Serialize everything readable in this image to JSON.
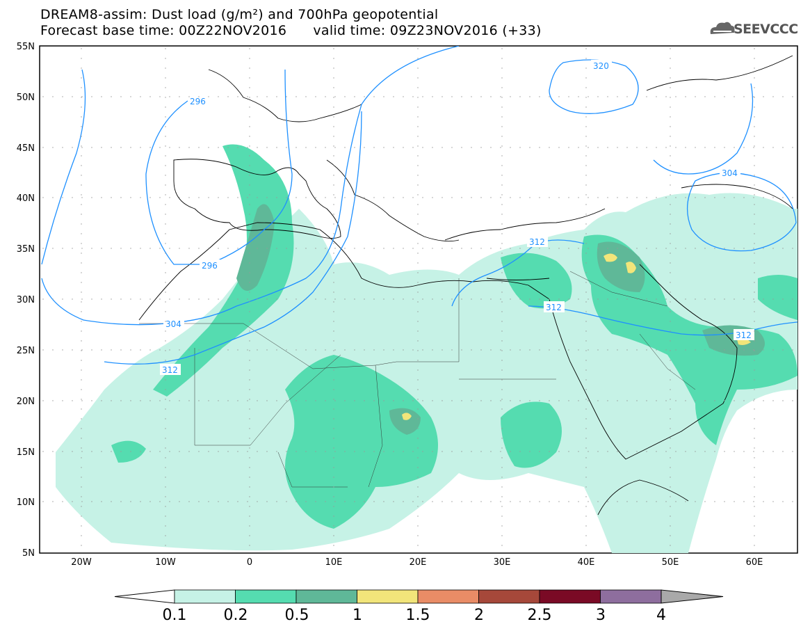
{
  "title_line1": "DREAM8-assim: Dust load (g/m²) and 700hPa geopotential",
  "title_line2": "Forecast base time: 00Z22NOV2016      valid time: 09Z23NOV2016 (+33)",
  "logo_text": "SEEVCCC",
  "lat_labels": [
    "55N",
    "50N",
    "45N",
    "40N",
    "35N",
    "30N",
    "25N",
    "20N",
    "15N",
    "10N",
    "5N"
  ],
  "lon_labels": [
    "20W",
    "10W",
    "0",
    "10E",
    "20E",
    "30E",
    "40E",
    "50E",
    "60E"
  ],
  "contour_labels": [
    "296",
    "296",
    "304",
    "312",
    "320",
    "304",
    "312",
    "312",
    "312"
  ],
  "colorbar": {
    "labels": [
      "0.1",
      "0.2",
      "0.5",
      "1",
      "1.5",
      "2",
      "2.5",
      "3",
      "4"
    ],
    "colors": [
      "#c6f2e6",
      "#55dcb0",
      "#5fb898",
      "#f2e57a",
      "#e98c66",
      "#a6483a",
      "#7a0a25",
      "#8e6e9e"
    ],
    "under_color": "#ffffff",
    "over_color": "#a9a9a9"
  }
}
